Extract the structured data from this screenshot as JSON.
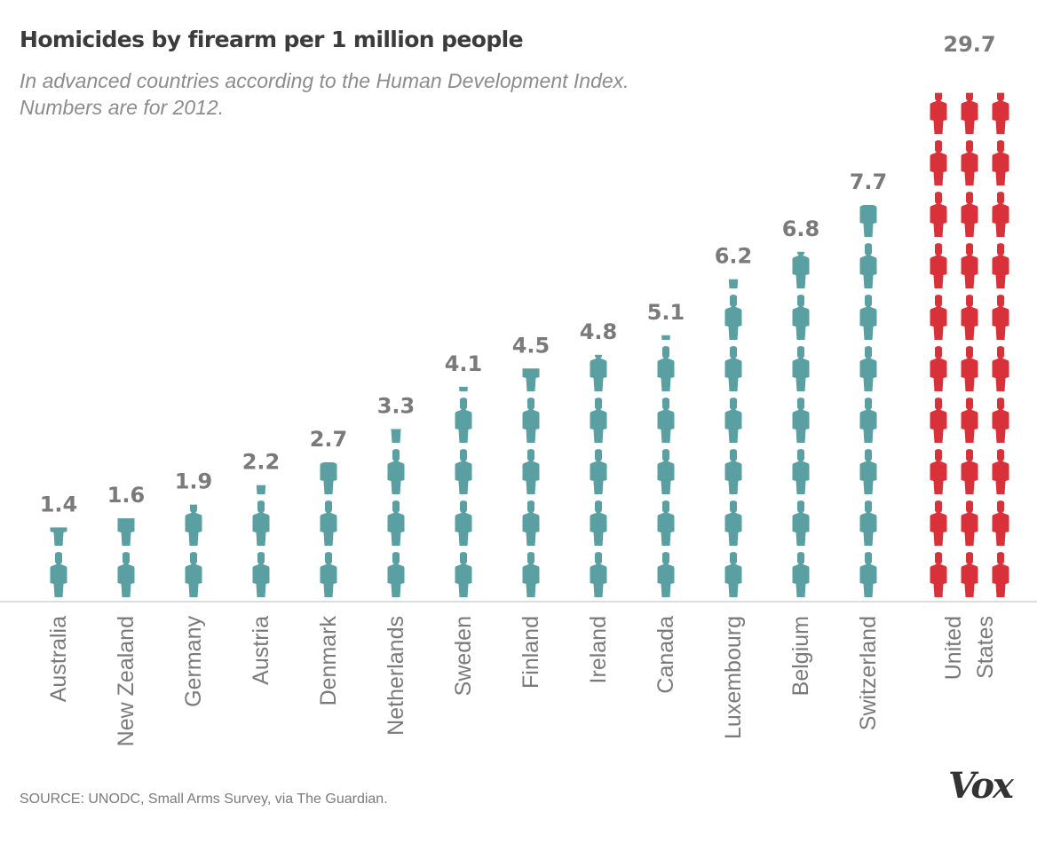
{
  "chart_data": {
    "type": "bar",
    "title": "Homicides by firearm per 1 million people",
    "subtitle": [
      "In advanced countries according to the Human Development Index.",
      "Numbers are for 2012."
    ],
    "categories": [
      [
        "Australia"
      ],
      [
        "New Zealand"
      ],
      [
        "Germany"
      ],
      [
        "Austria"
      ],
      [
        "Denmark"
      ],
      [
        "Netherlands"
      ],
      [
        "Sweden"
      ],
      [
        "Finland"
      ],
      [
        "Ireland"
      ],
      [
        "Canada"
      ],
      [
        "Luxembourg"
      ],
      [
        "Belgium"
      ],
      [
        "Switzerland"
      ],
      [
        "United",
        "States"
      ]
    ],
    "values": [
      1.4,
      1.6,
      1.9,
      2.2,
      2.7,
      3.3,
      4.1,
      4.5,
      4.8,
      5.1,
      6.2,
      6.8,
      7.7,
      29.7
    ],
    "value_labels": [
      "1.4",
      "1.6",
      "1.9",
      "2.2",
      "2.7",
      "3.3",
      "4.1",
      "4.5",
      "4.8",
      "5.1",
      "6.2",
      "6.8",
      "7.7",
      "29.7"
    ],
    "unit_per_icon": 1,
    "mark": "person-icon",
    "colors": {
      "default": "#5a9fa1",
      "highlight": "#d8313a",
      "label": "#7a7a7a",
      "axis": "#bbbbbb"
    },
    "highlight_category": "United States"
  },
  "source": "SOURCE: UNODC, Small Arms Survey, via The Guardian.",
  "logo": "Vox"
}
